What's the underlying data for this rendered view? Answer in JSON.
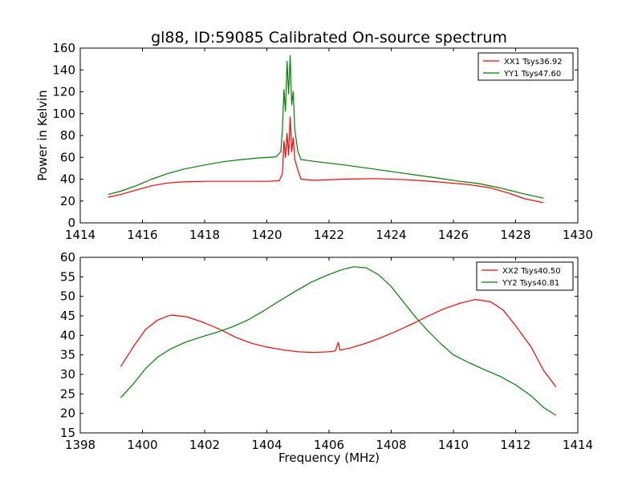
{
  "chart_data": [
    {
      "type": "line",
      "title": "gl88, ID:59085 Calibrated On-source spectrum",
      "xlabel": "",
      "ylabel": "Power in Kelvin",
      "xlim": [
        1414,
        1430
      ],
      "ylim": [
        0,
        160
      ],
      "xticks": [
        1414,
        1416,
        1418,
        1420,
        1422,
        1424,
        1426,
        1428,
        1430
      ],
      "yticks": [
        0,
        20,
        40,
        60,
        80,
        100,
        120,
        140,
        160
      ],
      "grid": false,
      "legend_position": "top-right",
      "series": [
        {
          "name": "XX1 Tsys36.92",
          "color": "#ff0000",
          "points": [
            [
              1414.9,
              23.5
            ],
            [
              1415.3,
              26
            ],
            [
              1415.8,
              30
            ],
            [
              1416.3,
              34
            ],
            [
              1416.8,
              36.5
            ],
            [
              1417.3,
              37.5
            ],
            [
              1418.0,
              38
            ],
            [
              1419.0,
              38
            ],
            [
              1420.0,
              38
            ],
            [
              1420.4,
              38.5
            ],
            [
              1420.5,
              45
            ],
            [
              1420.55,
              75
            ],
            [
              1420.6,
              60
            ],
            [
              1420.65,
              82
            ],
            [
              1420.7,
              62
            ],
            [
              1420.75,
              97
            ],
            [
              1420.8,
              65
            ],
            [
              1420.85,
              78
            ],
            [
              1420.9,
              58
            ],
            [
              1421.0,
              48
            ],
            [
              1421.1,
              40
            ],
            [
              1421.5,
              39
            ],
            [
              1422.5,
              40
            ],
            [
              1423.5,
              40.5
            ],
            [
              1424.5,
              39.5
            ],
            [
              1425.5,
              37.5
            ],
            [
              1426.5,
              35
            ],
            [
              1427.2,
              32
            ],
            [
              1427.8,
              27
            ],
            [
              1428.3,
              22
            ],
            [
              1428.9,
              18.5
            ]
          ]
        },
        {
          "name": "YY1 Tsys47.60",
          "color": "#008000",
          "points": [
            [
              1414.9,
              26
            ],
            [
              1415.3,
              29
            ],
            [
              1415.8,
              34
            ],
            [
              1416.3,
              40
            ],
            [
              1416.8,
              45
            ],
            [
              1417.3,
              49
            ],
            [
              1418.0,
              53
            ],
            [
              1418.6,
              56
            ],
            [
              1419.2,
              58
            ],
            [
              1419.8,
              59.5
            ],
            [
              1420.3,
              60.5
            ],
            [
              1420.45,
              65
            ],
            [
              1420.5,
              85
            ],
            [
              1420.55,
              122
            ],
            [
              1420.6,
              102
            ],
            [
              1420.65,
              148
            ],
            [
              1420.7,
              118
            ],
            [
              1420.75,
              153
            ],
            [
              1420.8,
              108
            ],
            [
              1420.85,
              120
            ],
            [
              1420.9,
              85
            ],
            [
              1421.0,
              65
            ],
            [
              1421.1,
              58
            ],
            [
              1421.6,
              56
            ],
            [
              1422.5,
              53
            ],
            [
              1423.5,
              49
            ],
            [
              1424.5,
              45
            ],
            [
              1425.5,
              41
            ],
            [
              1426.2,
              38
            ],
            [
              1426.8,
              36
            ],
            [
              1427.5,
              32
            ],
            [
              1428.2,
              27
            ],
            [
              1428.9,
              22.5
            ]
          ]
        }
      ]
    },
    {
      "type": "line",
      "title": "",
      "xlabel": "Frequency (MHz)",
      "ylabel": "",
      "xlim": [
        1398,
        1414
      ],
      "ylim": [
        15,
        60
      ],
      "xticks": [
        1398,
        1400,
        1402,
        1404,
        1406,
        1408,
        1410,
        1412,
        1414
      ],
      "yticks": [
        15,
        20,
        25,
        30,
        35,
        40,
        45,
        50,
        55,
        60
      ],
      "grid": false,
      "legend_position": "top-right",
      "series": [
        {
          "name": "XX2 Tsys40.50",
          "color": "#ff0000",
          "points": [
            [
              1399.3,
              32
            ],
            [
              1399.7,
              37
            ],
            [
              1400.1,
              41.5
            ],
            [
              1400.5,
              44
            ],
            [
              1400.9,
              45.2
            ],
            [
              1401.4,
              44.8
            ],
            [
              1401.9,
              43.5
            ],
            [
              1402.5,
              41.5
            ],
            [
              1403.0,
              39.5
            ],
            [
              1403.5,
              38
            ],
            [
              1404.0,
              37
            ],
            [
              1404.5,
              36.3
            ],
            [
              1405.0,
              35.8
            ],
            [
              1405.5,
              35.6
            ],
            [
              1406.0,
              35.8
            ],
            [
              1406.2,
              36.0
            ],
            [
              1406.3,
              38.2
            ],
            [
              1406.35,
              36.2
            ],
            [
              1406.7,
              36.8
            ],
            [
              1407.2,
              38
            ],
            [
              1407.7,
              39.5
            ],
            [
              1408.2,
              41.2
            ],
            [
              1408.7,
              43
            ],
            [
              1409.2,
              45
            ],
            [
              1409.7,
              46.8
            ],
            [
              1410.2,
              48.2
            ],
            [
              1410.7,
              49.2
            ],
            [
              1411.2,
              48.6
            ],
            [
              1411.6,
              46.5
            ],
            [
              1412.0,
              42.5
            ],
            [
              1412.5,
              37
            ],
            [
              1412.9,
              31
            ],
            [
              1413.3,
              26.8
            ]
          ]
        },
        {
          "name": "YY2 Tsys40.81",
          "color": "#008000",
          "points": [
            [
              1399.3,
              24
            ],
            [
              1399.7,
              27.5
            ],
            [
              1400.1,
              31.5
            ],
            [
              1400.5,
              34.5
            ],
            [
              1400.9,
              36.5
            ],
            [
              1401.4,
              38.3
            ],
            [
              1401.9,
              39.6
            ],
            [
              1402.4,
              40.8
            ],
            [
              1402.9,
              42.2
            ],
            [
              1403.4,
              44
            ],
            [
              1403.9,
              46.3
            ],
            [
              1404.4,
              48.8
            ],
            [
              1404.9,
              51.2
            ],
            [
              1405.4,
              53.5
            ],
            [
              1405.9,
              55.3
            ],
            [
              1406.4,
              56.8
            ],
            [
              1406.8,
              57.6
            ],
            [
              1407.2,
              57.3
            ],
            [
              1407.6,
              55.5
            ],
            [
              1408.0,
              52.5
            ],
            [
              1408.4,
              48.5
            ],
            [
              1408.8,
              44.5
            ],
            [
              1409.2,
              41
            ],
            [
              1409.6,
              37.8
            ],
            [
              1410.0,
              35
            ],
            [
              1410.5,
              33
            ],
            [
              1411.0,
              31.2
            ],
            [
              1411.5,
              29.5
            ],
            [
              1412.0,
              27.3
            ],
            [
              1412.5,
              24.5
            ],
            [
              1412.9,
              21.5
            ],
            [
              1413.3,
              19.5
            ]
          ]
        }
      ]
    }
  ]
}
